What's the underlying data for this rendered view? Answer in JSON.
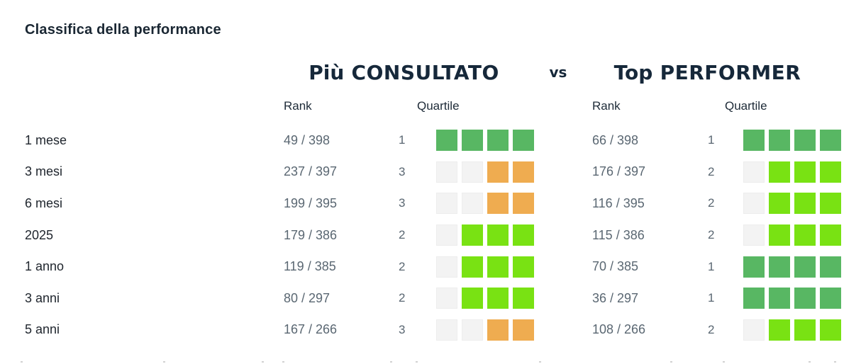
{
  "title": "Classifica della performance",
  "chart_data": {
    "type": "table",
    "title": "Classifica della performance",
    "groups": [
      {
        "name_emphasis": "Più",
        "name": "CONSULTATO"
      },
      {
        "name_emphasis": "Top",
        "name": "PERFORMER"
      }
    ],
    "vs_label": "vs",
    "columns": [
      "Rank",
      "Quartile"
    ],
    "quartile_scale": {
      "max_squares": 4,
      "filled_rule": "squares_filled = max_squares + 1 - quartile, filled from the right",
      "colors": {
        "1": "#58b763",
        "2": "#79e213",
        "3": "#efac50",
        "empty": "#f3f3f3"
      }
    },
    "rows": [
      {
        "label": "1 mese",
        "left": {
          "rank": "49 / 398",
          "quartile": 1
        },
        "right": {
          "rank": "66 / 398",
          "quartile": 1
        }
      },
      {
        "label": "3 mesi",
        "left": {
          "rank": "237 / 397",
          "quartile": 3
        },
        "right": {
          "rank": "176 / 397",
          "quartile": 2
        }
      },
      {
        "label": "6 mesi",
        "left": {
          "rank": "199 / 395",
          "quartile": 3
        },
        "right": {
          "rank": "116 / 395",
          "quartile": 2
        }
      },
      {
        "label": "2025",
        "left": {
          "rank": "179 / 386",
          "quartile": 2
        },
        "right": {
          "rank": "115 / 386",
          "quartile": 2
        }
      },
      {
        "label": "1 anno",
        "left": {
          "rank": "119 / 385",
          "quartile": 2
        },
        "right": {
          "rank": "70 / 385",
          "quartile": 1
        }
      },
      {
        "label": "3 anni",
        "left": {
          "rank": "80 / 297",
          "quartile": 2
        },
        "right": {
          "rank": "36 / 297",
          "quartile": 1
        }
      },
      {
        "label": "5 anni",
        "left": {
          "rank": "167 / 266",
          "quartile": 3
        },
        "right": {
          "rank": "108 / 266",
          "quartile": 2
        }
      }
    ]
  },
  "colors": {
    "heading_navy": "#16283a",
    "row_label": "#20262e",
    "value_gray": "#5a6772",
    "quartile_1_green": "#58b763",
    "quartile_2_lime": "#79e213",
    "quartile_3_orange": "#efac50",
    "square_empty": "#f3f3f3"
  }
}
